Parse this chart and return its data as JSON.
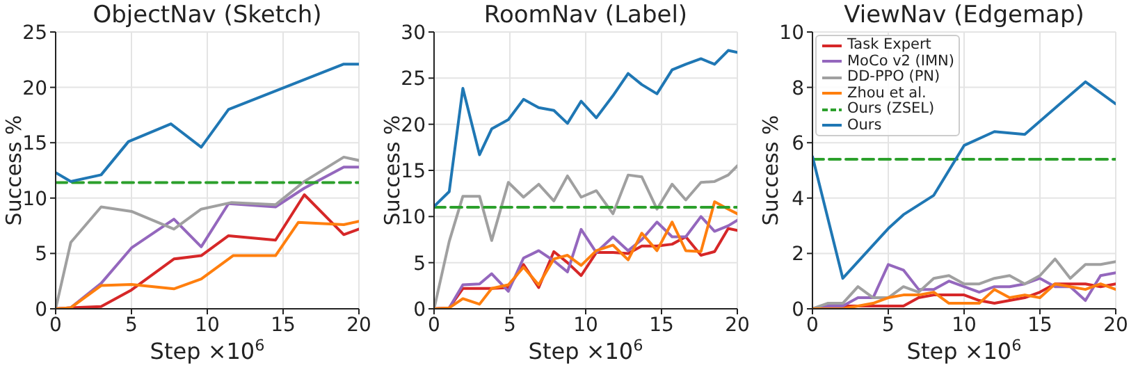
{
  "chart_data": [
    {
      "type": "line",
      "title": "ObjectNav (Sketch)",
      "xlabel": "Step ×10$^{6}$",
      "ylabel": "Success %",
      "xlim": [
        0,
        20
      ],
      "xticks": [
        0,
        5,
        10,
        15,
        20
      ],
      "ylim": [
        0,
        25
      ],
      "yticks": [
        0,
        5,
        10,
        15,
        20,
        25
      ],
      "grid": true,
      "legend": false,
      "marker": "none",
      "line_style": "solid",
      "series": [
        {
          "color": "#d62728",
          "x": [
            0,
            1,
            3,
            5,
            7.8,
            9.6,
            11.4,
            14.5,
            16.4,
            19,
            20
          ],
          "values": [
            0,
            0.1,
            0.2,
            1.7,
            4.5,
            4.8,
            6.6,
            6.2,
            10.3,
            6.7,
            7.2
          ]
        },
        {
          "color": "#9467bd",
          "x": [
            0,
            1,
            3,
            5,
            7.8,
            9.6,
            11.4,
            14.5,
            16.4,
            19,
            20
          ],
          "values": [
            0,
            0.1,
            2.3,
            5.5,
            8.1,
            5.6,
            9.5,
            9.2,
            10.9,
            12.8,
            12.8
          ]
        },
        {
          "color": "#a0a0a0",
          "x": [
            0,
            1,
            3,
            5,
            7.8,
            9.6,
            11.6,
            14.5,
            16.4,
            19,
            20
          ],
          "values": [
            0,
            6.0,
            9.2,
            8.8,
            7.2,
            9.0,
            9.6,
            9.4,
            11.5,
            13.7,
            13.4
          ]
        },
        {
          "color": "#ff7f0e",
          "x": [
            0,
            1,
            3,
            5,
            7.8,
            9.6,
            11.7,
            14.5,
            16,
            19,
            20
          ],
          "values": [
            0,
            0.1,
            2.1,
            2.2,
            1.8,
            2.7,
            4.8,
            4.8,
            7.8,
            7.6,
            7.9
          ]
        },
        {
          "color": "#2ca02c",
          "line_style": "dashed",
          "x": [
            0,
            20
          ],
          "values": [
            11.4,
            11.4
          ]
        },
        {
          "color": "#1f77b4",
          "x": [
            0,
            1,
            3,
            4.8,
            7.6,
            9.6,
            11.4,
            19,
            20
          ],
          "values": [
            12.3,
            11.5,
            12.1,
            15.1,
            16.7,
            14.6,
            18.0,
            22.1,
            22.1
          ]
        }
      ]
    },
    {
      "type": "line",
      "title": "RoomNav (Label)",
      "xlabel": "Step ×10$^{6}$",
      "ylabel": "Success %",
      "xlim": [
        0,
        20
      ],
      "xticks": [
        0,
        5,
        10,
        15,
        20
      ],
      "ylim": [
        0,
        30
      ],
      "yticks": [
        0,
        5,
        10,
        15,
        20,
        25,
        30
      ],
      "grid": true,
      "legend": false,
      "marker": "none",
      "line_style": "solid",
      "x": [
        0,
        1,
        1.9,
        3,
        3.8,
        4.9,
        5.9,
        6.9,
        7.9,
        8.8,
        9.7,
        10.7,
        11.8,
        12.8,
        13.7,
        14.7,
        15.7,
        16.6,
        17.6,
        18.5,
        19.4,
        20
      ],
      "series": [
        {
          "color": "#d62728",
          "values": [
            0,
            0.1,
            2.2,
            2.2,
            2.2,
            2.3,
            4.8,
            2.3,
            6.2,
            5.0,
            3.6,
            6.1,
            6.1,
            6.0,
            6.8,
            6.8,
            7.0,
            7.8,
            5.8,
            6.2,
            8.7,
            8.5
          ]
        },
        {
          "color": "#9467bd",
          "values": [
            0,
            0.1,
            2.6,
            2.7,
            3.8,
            1.9,
            5.5,
            6.3,
            5.2,
            4.0,
            8.6,
            6.1,
            7.8,
            6.3,
            7.5,
            9.4,
            7.8,
            7.8,
            10.0,
            8.4,
            9.0,
            9.6
          ]
        },
        {
          "color": "#a0a0a0",
          "values": [
            0,
            7.3,
            12.2,
            12.2,
            7.4,
            13.7,
            12.1,
            13.5,
            11.7,
            14.4,
            12.1,
            12.8,
            10.3,
            14.5,
            14.3,
            10.8,
            13.5,
            11.8,
            13.7,
            13.8,
            14.5,
            15.5
          ]
        },
        {
          "color": "#ff7f0e",
          "values": [
            0,
            0.1,
            1.1,
            0.5,
            2.2,
            2.6,
            4.5,
            2.6,
            5.4,
            5.8,
            4.7,
            6.3,
            6.9,
            5.3,
            8.2,
            6.3,
            9.4,
            6.3,
            6.2,
            11.6,
            10.8,
            10.3
          ]
        },
        {
          "color": "#2ca02c",
          "line_style": "dashed",
          "x": [
            0,
            20
          ],
          "values": [
            11.0,
            11.0
          ]
        },
        {
          "color": "#1f77b4",
          "values": [
            11.1,
            12.7,
            23.9,
            16.7,
            19.5,
            20.5,
            22.7,
            21.8,
            21.5,
            20.1,
            22.5,
            20.7,
            23.1,
            25.5,
            24.3,
            23.3,
            25.9,
            26.5,
            27.1,
            26.5,
            28.0,
            27.8
          ]
        }
      ]
    },
    {
      "type": "line",
      "title": "ViewNav (Edgemap)",
      "xlabel": "Step ×10$^{6}$",
      "ylabel": "Success %",
      "xlim": [
        0,
        20
      ],
      "xticks": [
        0,
        5,
        10,
        15,
        20
      ],
      "ylim": [
        0,
        10
      ],
      "yticks": [
        0,
        2,
        4,
        6,
        8,
        10
      ],
      "grid": true,
      "legend": "top left",
      "marker": "none",
      "line_style": "solid",
      "x": [
        0,
        1,
        2,
        3,
        4,
        5,
        6,
        7,
        8,
        9,
        10,
        11,
        12,
        13,
        14,
        15,
        16,
        17,
        18,
        19,
        20
      ],
      "series": [
        {
          "name": "Task Expert",
          "color": "#d62728",
          "values": [
            0,
            0,
            0.1,
            0.1,
            0.1,
            0.1,
            0.1,
            0.4,
            0.5,
            0.5,
            0.5,
            0.3,
            0.2,
            0.3,
            0.4,
            0.6,
            0.9,
            0.9,
            0.9,
            0.8,
            0.9
          ]
        },
        {
          "name": "MoCo v2 (IMN)",
          "color": "#9467bd",
          "values": [
            0,
            0.1,
            0.1,
            0.4,
            0.4,
            1.6,
            1.4,
            0.7,
            0.7,
            1.0,
            0.8,
            0.6,
            0.8,
            0.8,
            0.9,
            1.1,
            0.8,
            0.8,
            0.3,
            1.2,
            1.3
          ]
        },
        {
          "name": "DD-PPO (PN)",
          "color": "#a0a0a0",
          "values": [
            0,
            0.2,
            0.2,
            0.8,
            0.4,
            0.4,
            0.8,
            0.6,
            1.1,
            1.2,
            0.9,
            0.9,
            1.1,
            1.2,
            0.9,
            1.2,
            1.8,
            1.1,
            1.6,
            1.6,
            1.7
          ]
        },
        {
          "name": "Zhou et al.",
          "color": "#ff7f0e",
          "values": [
            0,
            0,
            0,
            0.1,
            0.2,
            0.4,
            0.5,
            0.5,
            0.6,
            0.2,
            0.2,
            0.2,
            0.7,
            0.4,
            0.5,
            0.4,
            0.9,
            0.8,
            0.7,
            0.9,
            0.7
          ]
        },
        {
          "name": "Ours (ZSEL)",
          "color": "#2ca02c",
          "line_style": "dashed",
          "x": [
            0,
            20
          ],
          "values": [
            5.4,
            5.4
          ]
        },
        {
          "name": "Ours",
          "color": "#1f77b4",
          "x": [
            0,
            2,
            5,
            6,
            8,
            10,
            12,
            14,
            18,
            20
          ],
          "values": [
            5.5,
            1.1,
            2.9,
            3.4,
            4.1,
            5.9,
            6.4,
            6.3,
            8.2,
            7.4
          ]
        }
      ]
    }
  ]
}
